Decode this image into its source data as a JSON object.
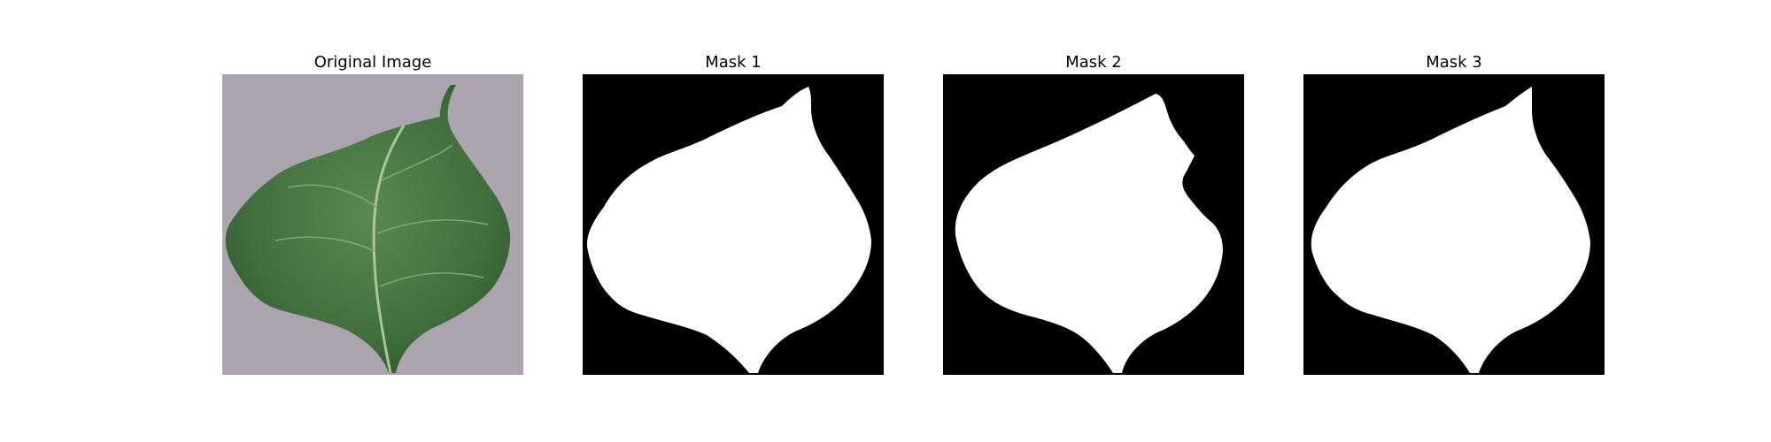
{
  "figure": {
    "panels": [
      {
        "title": "Original Image",
        "kind": "photo"
      },
      {
        "title": "Mask 1",
        "kind": "mask"
      },
      {
        "title": "Mask 2",
        "kind": "mask"
      },
      {
        "title": "Mask 3",
        "kind": "mask"
      }
    ]
  },
  "colors": {
    "background_surface": "#aba3ad",
    "leaf_dark": "#3d6b3a",
    "leaf_mid": "#4f7d47",
    "vein": "#a8c79b",
    "mask_background": "#000000",
    "mask_foreground": "#ffffff"
  }
}
